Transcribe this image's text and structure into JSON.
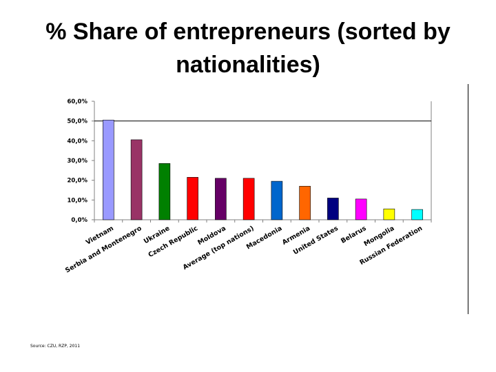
{
  "title": "% Share of entrepreneurs (sorted by nationalities)",
  "source": "Source: CZU, RZP, 2011",
  "chart_data": {
    "type": "bar",
    "title": "% Share of entrepreneurs (sorted by nationalities)",
    "xlabel": "",
    "ylabel": "",
    "ylim": [
      0,
      60
    ],
    "yticks": [
      0,
      10,
      20,
      30,
      40,
      50,
      60
    ],
    "ytick_labels": [
      "0,0%",
      "10,0%",
      "20,0%",
      "30,0%",
      "40,0%",
      "50,0%",
      "60,0%"
    ],
    "grid": false,
    "reference_line": 50,
    "categories": [
      "Vietnam",
      "Serbia and Montenegro",
      "Ukraine",
      "Czech Republic",
      "Moldova",
      "Average (top nations)",
      "Macedonia",
      "Armenia",
      "United States",
      "Belarus",
      "Mongolia",
      "Russian Federation"
    ],
    "values": [
      50.5,
      40.5,
      28.5,
      21.5,
      21.0,
      21.0,
      19.5,
      17.0,
      11.0,
      10.5,
      5.5,
      5.2
    ],
    "colors": [
      "#9999ff",
      "#993366",
      "#008000",
      "#ff0000",
      "#660066",
      "#ff0000",
      "#0066cc",
      "#ff6600",
      "#000080",
      "#ff00ff",
      "#ffff00",
      "#00ffff"
    ]
  }
}
